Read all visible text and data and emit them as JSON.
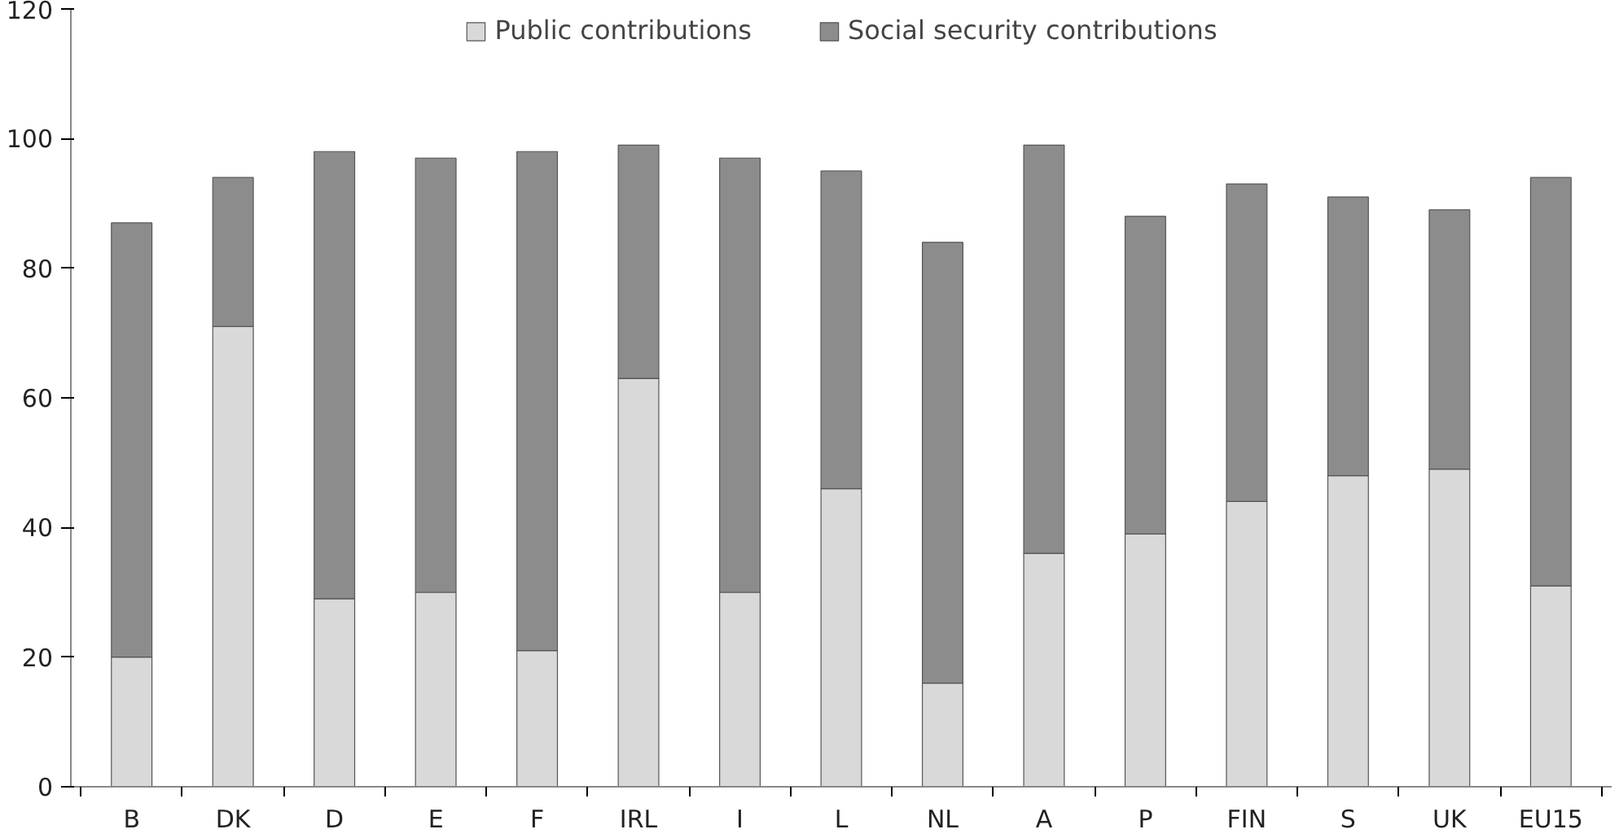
{
  "chart_data": {
    "type": "bar",
    "stacked": true,
    "categories": [
      "B",
      "DK",
      "D",
      "E",
      "F",
      "IRL",
      "I",
      "L",
      "NL",
      "A",
      "P",
      "FIN",
      "S",
      "UK",
      "EU15"
    ],
    "series": [
      {
        "name": "Public contributions",
        "color": "#d9d9d9",
        "values": [
          20,
          71,
          29,
          30,
          21,
          63,
          30,
          46,
          16,
          36,
          39,
          44,
          48,
          49,
          31
        ]
      },
      {
        "name": "Social security contributions",
        "color": "#8c8c8c",
        "values": [
          67,
          23,
          69,
          67,
          77,
          36,
          67,
          49,
          68,
          63,
          49,
          49,
          43,
          40,
          63
        ]
      }
    ],
    "ylim": [
      0,
      120
    ],
    "yticks": [
      0,
      20,
      40,
      60,
      80,
      100,
      120
    ],
    "grid": false,
    "legend": "top"
  }
}
